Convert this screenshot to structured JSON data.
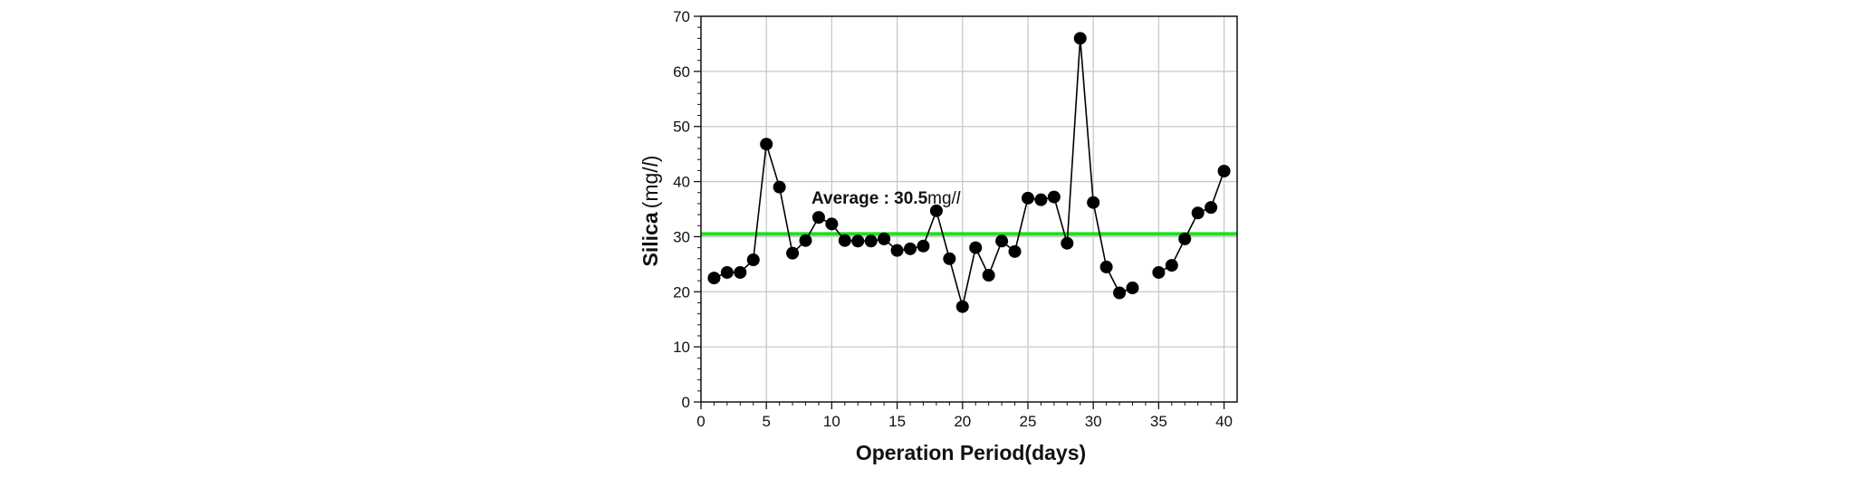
{
  "chart_data": {
    "type": "line",
    "xlabel": "Operation Period(days)",
    "ylabel_main": "Silica",
    "ylabel_unit": "(mg/",
    "ylabel_unit_italic": "l",
    "ylabel_close": ")",
    "xlim": [
      0,
      41
    ],
    "ylim": [
      0,
      70
    ],
    "xticks": [
      0,
      5,
      10,
      15,
      20,
      25,
      30,
      35,
      40
    ],
    "yticks": [
      0,
      10,
      20,
      30,
      40,
      50,
      60,
      70
    ],
    "grid": true,
    "average": {
      "value": 30.5,
      "color": "#22dd22",
      "label_prefix": "Average : ",
      "label_value": "30.5",
      "label_unit": "mg/",
      "label_unit_italic": "l"
    },
    "series": [
      {
        "color": "#000000",
        "marker": "circle",
        "segments": [
          {
            "x": [
              1,
              2,
              3,
              4,
              5,
              6,
              7,
              8,
              9,
              10,
              11,
              12,
              13,
              14,
              15,
              16,
              17,
              18,
              19,
              20,
              21,
              22,
              23,
              24,
              25,
              26,
              27,
              28,
              29,
              30,
              31,
              32,
              33
            ],
            "y": [
              22.5,
              23.5,
              23.5,
              25.8,
              46.8,
              39.0,
              27.0,
              29.3,
              33.5,
              32.3,
              29.3,
              29.2,
              29.2,
              29.6,
              27.5,
              27.8,
              28.3,
              34.7,
              26.0,
              17.3,
              28.0,
              23.0,
              29.2,
              27.3,
              37.0,
              36.7,
              37.2,
              28.8,
              66.0,
              36.2,
              24.5,
              19.8,
              20.7
            ]
          },
          {
            "x": [
              35,
              36,
              37,
              38,
              39,
              40
            ],
            "y": [
              23.5,
              24.8,
              29.6,
              34.3,
              35.3,
              41.9
            ]
          }
        ]
      }
    ]
  }
}
